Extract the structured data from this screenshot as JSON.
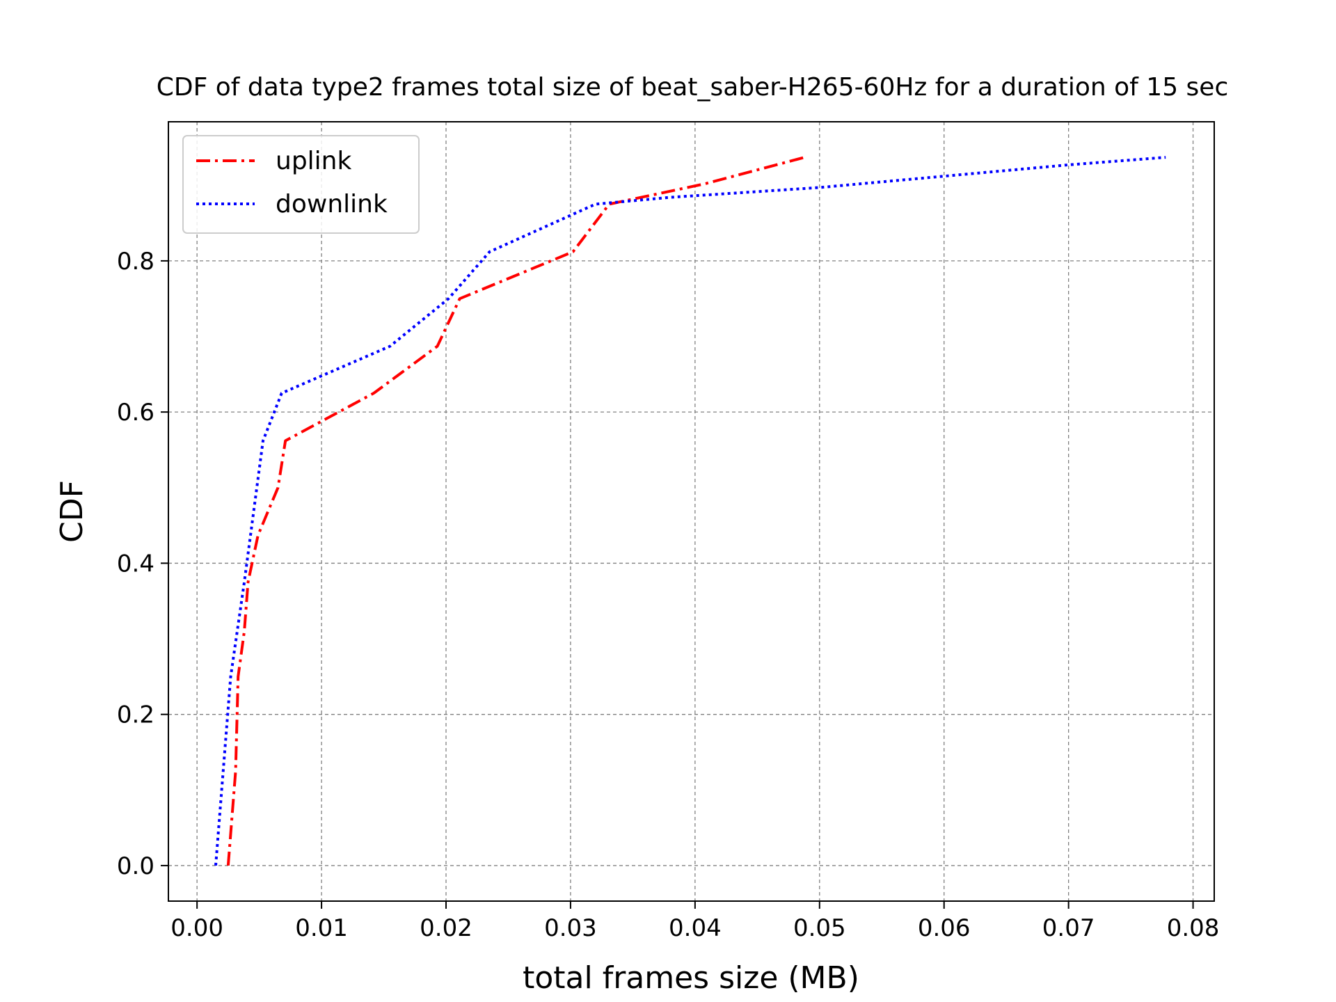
{
  "chart_data": {
    "type": "line",
    "title": "CDF of data type2 frames total size of beat_saber-H265-60Hz for a duration of 15 sec",
    "xlabel": "total frames size (MB)",
    "ylabel": "CDF",
    "xlim": [
      -0.0023,
      0.0817
    ],
    "ylim": [
      -0.047,
      0.984
    ],
    "xticks": [
      0.0,
      0.01,
      0.02,
      0.03,
      0.04,
      0.05,
      0.06,
      0.07,
      0.08
    ],
    "xtick_labels": [
      "0.00",
      "0.01",
      "0.02",
      "0.03",
      "0.04",
      "0.05",
      "0.06",
      "0.07",
      "0.08"
    ],
    "yticks": [
      0.0,
      0.2,
      0.4,
      0.6,
      0.8
    ],
    "ytick_labels": [
      "0.0",
      "0.2",
      "0.4",
      "0.6",
      "0.8"
    ],
    "grid": true,
    "legend_position": "top-left",
    "series": [
      {
        "name": "uplink",
        "color": "#ff0000",
        "line_style": "dash-dot",
        "x": [
          0.0025,
          0.0031,
          0.0033,
          0.0038,
          0.0041,
          0.0049,
          0.0065,
          0.0071,
          0.0142,
          0.0193,
          0.0211,
          0.0302,
          0.0331,
          0.0408,
          0.0488
        ],
        "y": [
          0.0,
          0.125,
          0.25,
          0.31,
          0.375,
          0.437,
          0.5,
          0.562,
          0.625,
          0.687,
          0.75,
          0.812,
          0.875,
          0.902,
          0.937
        ]
      },
      {
        "name": "downlink",
        "color": "#0000ff",
        "line_style": "dotted",
        "x": [
          0.0015,
          0.0027,
          0.0038,
          0.0053,
          0.0068,
          0.0155,
          0.0202,
          0.0235,
          0.032,
          0.038,
          0.05,
          0.06,
          0.07,
          0.0778
        ],
        "y": [
          0.0,
          0.25,
          0.375,
          0.562,
          0.625,
          0.687,
          0.75,
          0.812,
          0.875,
          0.884,
          0.897,
          0.912,
          0.927,
          0.937
        ]
      }
    ]
  }
}
